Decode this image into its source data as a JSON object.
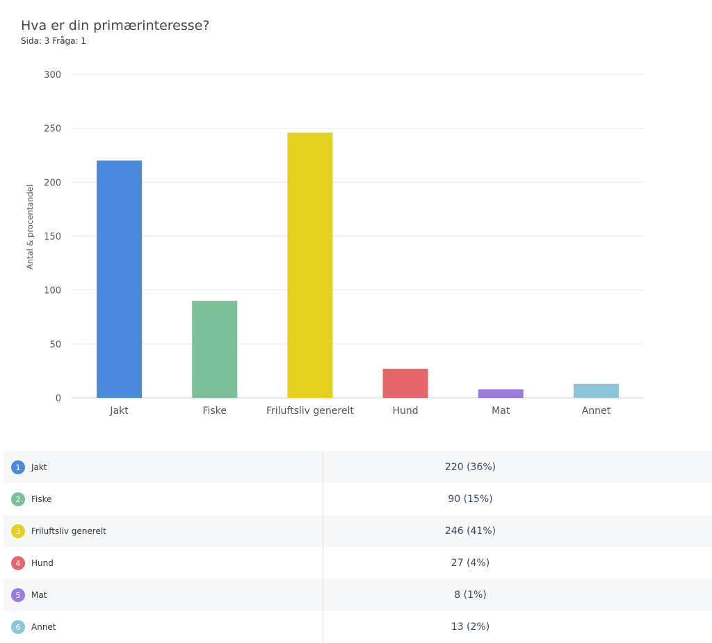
{
  "title": "Hva er din primærinteresse?",
  "subtitle": "Sida: 3 Fråga: 1",
  "chart_data": {
    "type": "bar",
    "categories": [
      "Jakt",
      "Fiske",
      "Friluftsliv generelt",
      "Hund",
      "Mat",
      "Annet"
    ],
    "values": [
      220,
      90,
      246,
      27,
      8,
      13
    ],
    "percents": [
      "36%",
      "15%",
      "41%",
      "4%",
      "1%",
      "2%"
    ],
    "colors": [
      "#4a89dc",
      "#7bc099",
      "#e5cf1f",
      "#e5676b",
      "#9a7be0",
      "#8ec4d8"
    ],
    "ylabel": "Antal & procentandel",
    "xlabel": "",
    "ylim": [
      0,
      300
    ],
    "yticks": [
      0,
      50,
      100,
      150,
      200,
      250,
      300
    ],
    "grid": true
  },
  "legend_rows": [
    {
      "num": "1",
      "label": "Jakt",
      "value": "220 (36%)"
    },
    {
      "num": "2",
      "label": "Fiske",
      "value": "90 (15%)"
    },
    {
      "num": "3",
      "label": "Friluftsliv generelt",
      "value": "246 (41%)"
    },
    {
      "num": "4",
      "label": "Hund",
      "value": "27 (4%)"
    },
    {
      "num": "5",
      "label": "Mat",
      "value": "8 (1%)"
    },
    {
      "num": "6",
      "label": "Annet",
      "value": "13 (2%)"
    }
  ]
}
